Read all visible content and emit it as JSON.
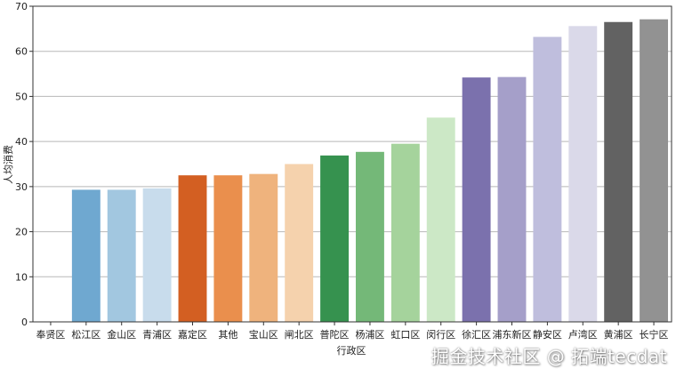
{
  "chart_data": {
    "type": "bar",
    "ylabel": "人均消费",
    "xlabel": "行政区",
    "ylim": [
      0,
      70
    ],
    "yticks": [
      0,
      10,
      20,
      30,
      40,
      50,
      60,
      70
    ],
    "grid": "horizontal",
    "categories": [
      "奉贤区",
      "松江区",
      "金山区",
      "青浦区",
      "嘉定区",
      "其他",
      "宝山区",
      "闸北区",
      "普陀区",
      "杨浦区",
      "虹口区",
      "闵行区",
      "徐汇区",
      "浦东新区",
      "静安区",
      "卢湾区",
      "黄浦区",
      "长宁区"
    ],
    "values": [
      0,
      29.3,
      29.3,
      29.6,
      32.5,
      32.5,
      32.8,
      35.0,
      36.9,
      37.7,
      39.5,
      45.3,
      54.2,
      54.3,
      63.2,
      65.6,
      66.5,
      67.1
    ],
    "colors": [
      "#ffffff",
      "#6fa8d0",
      "#a2c7e0",
      "#c8dcec",
      "#d35f22",
      "#ea8f4d",
      "#efb37d",
      "#f5d2ad",
      "#36924f",
      "#74b878",
      "#a5d39c",
      "#cce8c6",
      "#7b71ad",
      "#a59fc9",
      "#bfbedd",
      "#dad9e9",
      "#626262",
      "#929292"
    ]
  },
  "watermark": "掘金技术社区 @ 拓端tecdat"
}
